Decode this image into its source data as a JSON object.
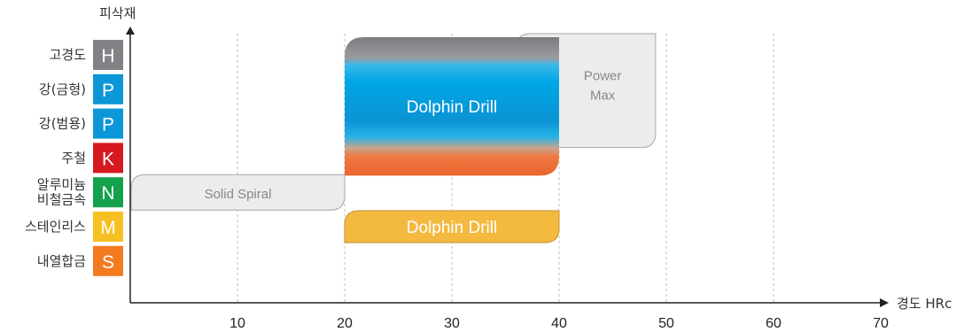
{
  "chart_data": {
    "type": "bar",
    "y_axis_label": "피삭재",
    "x_axis_label": "경도 HRc",
    "x_ticks": [
      10,
      20,
      30,
      40,
      50,
      60,
      70
    ],
    "xlim": [
      0,
      70
    ],
    "grid": "vertical dashed",
    "categories": [
      {
        "name": "고경도",
        "lines": [
          "고경도"
        ],
        "badge": "H",
        "color": "#808285"
      },
      {
        "name": "강(금형)",
        "lines": [
          "강(금형)"
        ],
        "badge": "P",
        "color": "#0b97d8"
      },
      {
        "name": "강(범용)",
        "lines": [
          "강(범용)"
        ],
        "badge": "P",
        "color": "#0b97d8"
      },
      {
        "name": "주철",
        "lines": [
          "주철"
        ],
        "badge": "K",
        "color": "#d6181f"
      },
      {
        "name": "알루미늄 비철금속",
        "lines": [
          "알루미늄",
          "비철금속"
        ],
        "badge": "N",
        "color": "#13a14b"
      },
      {
        "name": "스테인리스",
        "lines": [
          "스테인리스"
        ],
        "badge": "M",
        "color": "#f7c022"
      },
      {
        "name": "내열합금",
        "lines": [
          "내열합금"
        ],
        "badge": "S",
        "color": "#f47a20"
      }
    ],
    "ranges": [
      {
        "label": "Power Max",
        "x_start": 36,
        "x_end": 49,
        "rows": [
          "고경도",
          "강(금형)",
          "강(범용)"
        ],
        "style": "light-gray"
      },
      {
        "label": "Dolphin Drill",
        "x_start": 20,
        "x_end": 40,
        "rows": [
          "고경도",
          "강(금형)",
          "강(범용)",
          "주철"
        ],
        "style": "gradient"
      },
      {
        "label": "Solid Spiral",
        "x_start": 0,
        "x_end": 20,
        "rows": [
          "알루미늄 비철금속"
        ],
        "style": "light-gray"
      },
      {
        "label": "Dolphin Drill",
        "x_start": 20,
        "x_end": 40,
        "rows": [
          "스테인리스"
        ],
        "style": "yellow"
      }
    ]
  }
}
